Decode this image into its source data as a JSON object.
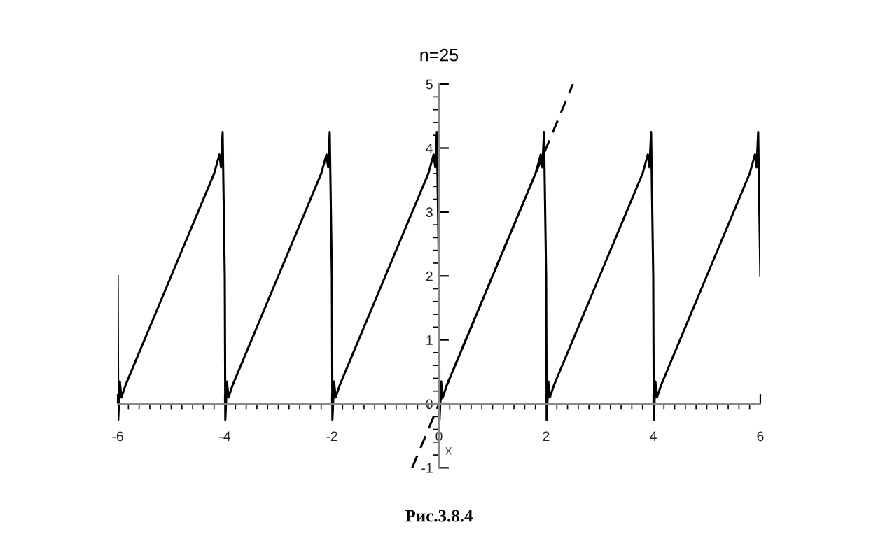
{
  "chart_data": {
    "type": "line",
    "title": "n=25",
    "xlabel": "x",
    "annotations": [
      "Рис.3.8.4"
    ],
    "series": [
      {
        "color": "#000000",
        "line_style": "solid",
        "x": [
          -6,
          -5.99,
          -5.96,
          -5.93,
          -5.85,
          -5.5,
          -5,
          -4.5,
          -4.2,
          -4.1,
          -4.07,
          -4.04,
          -4,
          -3.99,
          -3.96,
          -3.93,
          -3.85,
          -3.5,
          -3,
          -2.5,
          -2.2,
          -2.1,
          -2.07,
          -2.04,
          -2,
          -1.99,
          -1.96,
          -1.93,
          -1.85,
          -1.5,
          -1,
          -0.5,
          -0.2,
          -0.1,
          -0.07,
          -0.04,
          0,
          0.01,
          0.04,
          0.07,
          0.15,
          0.5,
          1,
          1.5,
          1.8,
          1.9,
          1.93,
          1.96,
          2,
          2.01,
          2.04,
          2.07,
          2.15,
          2.5,
          3,
          3.5,
          3.8,
          3.9,
          3.93,
          3.96,
          4,
          4.01,
          4.04,
          4.07,
          4.15,
          4.5,
          5,
          5.5,
          5.8,
          5.9,
          5.93,
          5.96,
          6
        ],
        "values": [
          2,
          -0.25,
          0.35,
          0.1,
          0.3,
          1,
          2,
          3,
          3.6,
          3.9,
          3.7,
          4.25,
          2,
          -0.25,
          0.35,
          0.1,
          0.3,
          1,
          2,
          3,
          3.6,
          3.9,
          3.7,
          4.25,
          2,
          -0.25,
          0.35,
          0.1,
          0.3,
          1,
          2,
          3,
          3.6,
          3.9,
          3.7,
          4.25,
          2,
          -0.25,
          0.35,
          0.1,
          0.3,
          1,
          2,
          3,
          3.6,
          3.9,
          3.7,
          4.25,
          2,
          -0.25,
          0.35,
          0.1,
          0.3,
          1,
          2,
          3,
          3.6,
          3.9,
          3.7,
          4.25,
          2,
          -0.25,
          0.35,
          0.1,
          0.3,
          1,
          2,
          3,
          3.6,
          3.9,
          3.7,
          4.25,
          2
        ]
      },
      {
        "color": "#000000",
        "line_style": "dashed",
        "x": [
          -0.5,
          2.5
        ],
        "values": [
          -1,
          5
        ]
      }
    ],
    "xlim": [
      -6,
      6
    ],
    "ylim": [
      -1,
      5
    ],
    "xticks": [
      -6,
      {
        "value": -5.8,
        "label": null
      },
      {
        "value": -5.6,
        "label": null
      },
      {
        "value": -5.4,
        "label": null
      },
      {
        "value": -5.2,
        "label": null
      },
      {
        "value": -5,
        "label": null
      },
      {
        "value": -4.8,
        "label": null
      },
      {
        "value": -4.6,
        "label": null
      },
      {
        "value": -4.4,
        "label": null
      },
      {
        "value": -4.2,
        "label": null
      },
      -4,
      {
        "value": -3.8,
        "label": null
      },
      {
        "value": -3.6,
        "label": null
      },
      {
        "value": -3.4,
        "label": null
      },
      {
        "value": -3.2,
        "label": null
      },
      {
        "value": -3,
        "label": null
      },
      {
        "value": -2.8,
        "label": null
      },
      {
        "value": -2.6,
        "label": null
      },
      {
        "value": -2.4,
        "label": null
      },
      {
        "value": -2.2,
        "label": null
      },
      -2,
      {
        "value": -1.8,
        "label": null
      },
      {
        "value": -1.6,
        "label": null
      },
      {
        "value": -1.4,
        "label": null
      },
      {
        "value": -1.2,
        "label": null
      },
      {
        "value": -1,
        "label": null
      },
      {
        "value": -0.8,
        "label": null
      },
      {
        "value": -0.6,
        "label": null
      },
      {
        "value": -0.4,
        "label": null
      },
      {
        "value": -0.2,
        "label": null
      },
      0,
      {
        "value": 0.2,
        "label": null
      },
      {
        "value": 0.4,
        "label": null
      },
      {
        "value": 0.6,
        "label": null
      },
      {
        "value": 0.8,
        "label": null
      },
      {
        "value": 1,
        "label": null
      },
      {
        "value": 1.2,
        "label": null
      },
      {
        "value": 1.4,
        "label": null
      },
      {
        "value": 1.6,
        "label": null
      },
      {
        "value": 1.8,
        "label": null
      },
      2,
      {
        "value": 2.2,
        "label": null
      },
      {
        "value": 2.4,
        "label": null
      },
      {
        "value": 2.6,
        "label": null
      },
      {
        "value": 2.8,
        "label": null
      },
      {
        "value": 3,
        "label": null
      },
      {
        "value": 3.2,
        "label": null
      },
      {
        "value": 3.4,
        "label": null
      },
      {
        "value": 3.6,
        "label": null
      },
      {
        "value": 3.8,
        "label": null
      },
      4,
      {
        "value": 4.2,
        "label": null
      },
      {
        "value": 4.4,
        "label": null
      },
      {
        "value": 4.6,
        "label": null
      },
      {
        "value": 4.8,
        "label": null
      },
      {
        "value": 5,
        "label": null
      },
      {
        "value": 5.2,
        "label": null
      },
      {
        "value": 5.4,
        "label": null
      },
      {
        "value": 5.6,
        "label": null
      },
      {
        "value": 5.8,
        "label": null
      },
      6
    ],
    "yticks": [
      -1,
      {
        "value": -0.8,
        "label": null
      },
      {
        "value": -0.6,
        "label": null
      },
      {
        "value": -0.4,
        "label": null
      },
      {
        "value": -0.2,
        "label": null
      },
      0,
      {
        "value": 0.2,
        "label": null
      },
      {
        "value": 0.4,
        "label": null
      },
      {
        "value": 0.6,
        "label": null
      },
      {
        "value": 0.8,
        "label": null
      },
      1,
      {
        "value": 1.2,
        "label": null
      },
      {
        "value": 1.4,
        "label": null
      },
      {
        "value": 1.6,
        "label": null
      },
      {
        "value": 1.8,
        "label": null
      },
      2,
      {
        "value": 2.2,
        "label": null
      },
      {
        "value": 2.4,
        "label": null
      },
      {
        "value": 2.6,
        "label": null
      },
      {
        "value": 2.8,
        "label": null
      },
      3,
      {
        "value": 3.2,
        "label": null
      },
      {
        "value": 3.4,
        "label": null
      },
      {
        "value": 3.6,
        "label": null
      },
      {
        "value": 3.8,
        "label": null
      },
      4,
      {
        "value": 4.2,
        "label": null
      },
      {
        "value": 4.4,
        "label": null
      },
      {
        "value": 4.6,
        "label": null
      },
      {
        "value": 4.8,
        "label": null
      },
      5
    ],
    "grid": false,
    "legend": false
  }
}
